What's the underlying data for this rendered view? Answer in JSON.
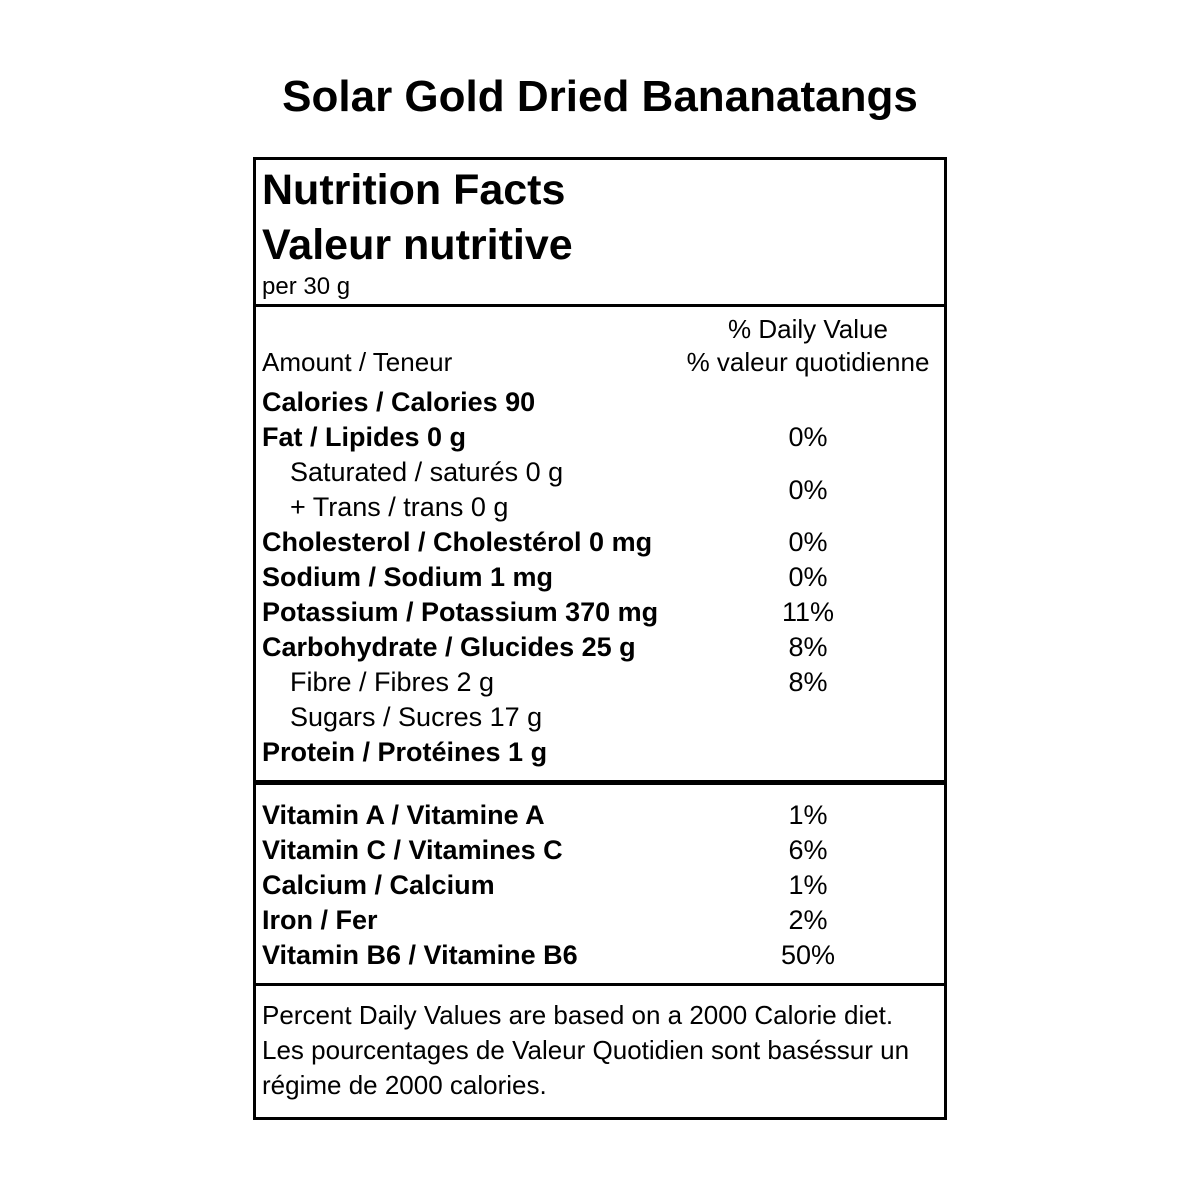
{
  "page": {
    "title": "Solar Gold Dried Bananatangs"
  },
  "label": {
    "header": {
      "title_en": "Nutrition Facts",
      "title_fr": "Valeur nutritive",
      "serving": "per 30 g"
    },
    "dv_header": {
      "amount": "Amount / Teneur",
      "dv_line_en": "% Daily Value",
      "dv_line_fr": "% valeur quotidienne"
    },
    "rows_a": [
      {
        "label": "Calories / Calories 90",
        "percent": ""
      },
      {
        "label": "Fat / Lipides 0 g",
        "percent": "0%"
      }
    ],
    "sat_trans": {
      "line1": "Saturated / saturés 0 g",
      "line2": "+ Trans / trans 0 g",
      "percent": "0%"
    },
    "rows_b": [
      {
        "label": "Cholesterol / Cholestérol 0 mg",
        "percent": "0%"
      },
      {
        "label": "Sodium / Sodium 1 mg",
        "percent": "0%"
      },
      {
        "label": "Potassium / Potassium 370 mg",
        "percent": "11%"
      },
      {
        "label": "Carbohydrate / Glucides 25 g",
        "percent": "8%"
      },
      {
        "label": "Fibre / Fibres 2 g",
        "percent": "8%"
      },
      {
        "label": "Sugars / Sucres 17 g",
        "percent": ""
      },
      {
        "label": "Protein / Protéines 1 g",
        "percent": ""
      }
    ],
    "vitamins": [
      {
        "label": "Vitamin A / Vitamine A",
        "percent": "1%"
      },
      {
        "label": "Vitamin C / Vitamines C",
        "percent": "6%"
      },
      {
        "label": "Calcium / Calcium",
        "percent": "1%"
      },
      {
        "label": "Iron / Fer",
        "percent": "2%"
      },
      {
        "label": "Vitamin B6 / Vitamine B6",
        "percent": "50%"
      }
    ],
    "footer": {
      "line1": "Percent Daily Values are based on a 2000 Calorie diet.",
      "line2": "Les pourcentages de Valeur Quotidien sont baséssur un",
      "line3": "régime de 2000 calories."
    }
  }
}
